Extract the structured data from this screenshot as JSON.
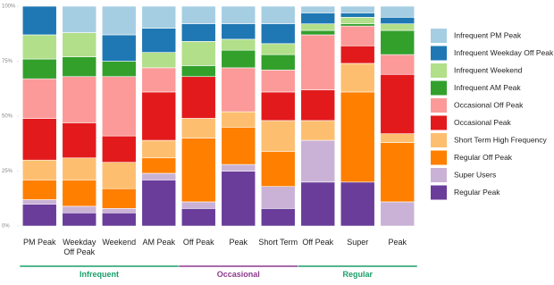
{
  "chart_data": {
    "type": "stacked_bar",
    "categories": [
      "PM Peak",
      "Weekday Off Peak",
      "Weekend",
      "AM Peak",
      "Off Peak",
      "Peak",
      "Short Term",
      "Off Peak",
      "Super",
      "Peak"
    ],
    "groups": [
      {
        "name": "Infrequent",
        "color": "#1a9e6a"
      },
      {
        "name": "Occasional",
        "color": "#8e3a8e"
      },
      {
        "name": "Regular",
        "color": "#1a9e6a"
      }
    ],
    "series": [
      {
        "name": "Regular Peak",
        "color": "#6a3d9a",
        "values": [
          10,
          6,
          6,
          21,
          8,
          25,
          8,
          20,
          20,
          0
        ]
      },
      {
        "name": "Super Users",
        "color": "#cab2d6",
        "values": [
          2,
          3,
          2,
          3,
          3,
          3,
          10,
          19,
          0,
          11
        ]
      },
      {
        "name": "Regular Off Peak",
        "color": "#ff7f00",
        "values": [
          9,
          12,
          9,
          7,
          29,
          17,
          16,
          0,
          41,
          27
        ]
      },
      {
        "name": "Short Term High Frequency",
        "color": "#fdbf6f",
        "values": [
          9,
          10,
          12,
          8,
          9,
          7,
          14,
          9,
          13,
          4
        ]
      },
      {
        "name": "Occasional Peak",
        "color": "#e31a1c",
        "values": [
          19,
          16,
          12,
          22,
          19,
          0,
          13,
          14,
          8,
          27
        ]
      },
      {
        "name": "Occasional Off Peak",
        "color": "#fb9a99",
        "values": [
          18,
          21,
          27,
          11,
          0,
          20,
          10,
          25,
          9,
          9
        ]
      },
      {
        "name": "Infrequent AM Peak",
        "color": "#33a02c",
        "values": [
          9,
          9,
          7,
          0,
          5,
          8,
          7,
          2,
          1,
          11
        ]
      },
      {
        "name": "Infrequent Weekend",
        "color": "#b2df8a",
        "values": [
          11,
          11,
          0,
          7,
          11,
          5,
          5,
          3,
          3,
          3
        ]
      },
      {
        "name": "Infrequent Weekday Off Peak",
        "color": "#1f78b4",
        "values": [
          13,
          0,
          12,
          11,
          8,
          7,
          9,
          5,
          2,
          3
        ]
      },
      {
        "name": "Infrequent PM Peak",
        "color": "#a6cee3",
        "values": [
          0,
          12,
          13,
          10,
          8,
          8,
          8,
          3,
          3,
          5
        ]
      }
    ],
    "ylim": [
      0,
      100
    ],
    "yticks": [
      {
        "value": 0,
        "label": "0%"
      },
      {
        "value": 25,
        "label": "25%"
      },
      {
        "value": 50,
        "label": "50%"
      },
      {
        "value": 75,
        "label": "75%"
      },
      {
        "value": 100,
        "label": "100%"
      }
    ]
  }
}
